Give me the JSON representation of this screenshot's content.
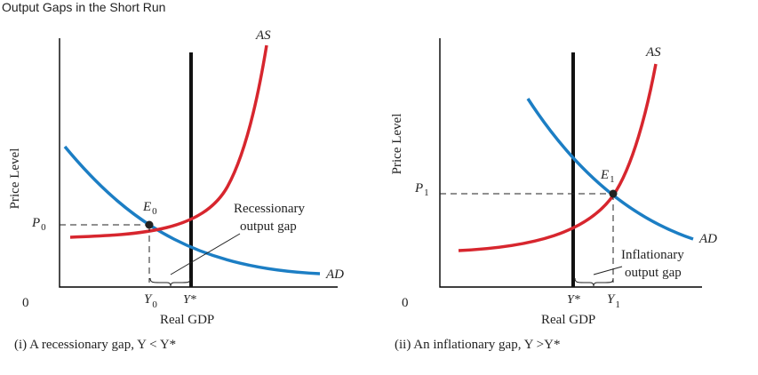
{
  "title": "Output Gaps in the Short Run",
  "colors": {
    "as_curve": "#d7262e",
    "ad_curve": "#1c7ec4",
    "lras": "#111111",
    "axis": "#000000"
  },
  "left_panel": {
    "ylabel": "Price Level",
    "xlabel": "Real GDP",
    "origin": "0",
    "as_label": "AS",
    "ad_label": "AD",
    "equilibrium_letter": "E",
    "equilibrium_sub": "0",
    "price_letter": "P",
    "price_sub": "0",
    "y0_letter": "Y",
    "y0_sub": "0",
    "ystar": "Y*",
    "gap_line1": "Recessionary",
    "gap_line2": "output gap",
    "caption": "(i) A recessionary gap, Y < Y*"
  },
  "right_panel": {
    "ylabel": "Price Level",
    "xlabel": "Real GDP",
    "origin": "0",
    "as_label": "AS",
    "ad_label": "AD",
    "equilibrium_letter": "E",
    "equilibrium_sub": "1",
    "price_letter": "P",
    "price_sub": "1",
    "y1_letter": "Y",
    "y1_sub": "1",
    "ystar": "Y*",
    "gap_line1": "Inflationary",
    "gap_line2": "output gap",
    "caption": "(ii) An inflationary gap, Y >Y*"
  }
}
